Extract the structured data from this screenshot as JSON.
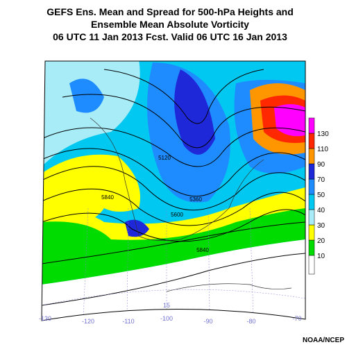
{
  "title_lines": [
    "GEFS Ens. Mean and Spread for 500-hPa Heights and",
    "Ensemble Mean Absolute Vorticity",
    "06 UTC 11 Jan 2013 Fcst. Valid 06 UTC 16 Jan 2013"
  ],
  "colorbar": {
    "levels": [
      10,
      20,
      30,
      40,
      50,
      70,
      90,
      110,
      130
    ],
    "colors": [
      "#ffffff",
      "#00dc00",
      "#ffff00",
      "#a8ecf8",
      "#00c8f0",
      "#1e8cff",
      "#1e28d8",
      "#ff9600",
      "#ff2800",
      "#ff00ff"
    ]
  },
  "longitude_labels": [
    "-130",
    "-120",
    "-110",
    "-100",
    "-90",
    "-80",
    "-70"
  ],
  "latitude_labels": [
    "15"
  ],
  "contour_labels": [
    "5120",
    "5360",
    "5600",
    "5840",
    "5840"
  ],
  "credit": "NOAA/NCEP"
}
